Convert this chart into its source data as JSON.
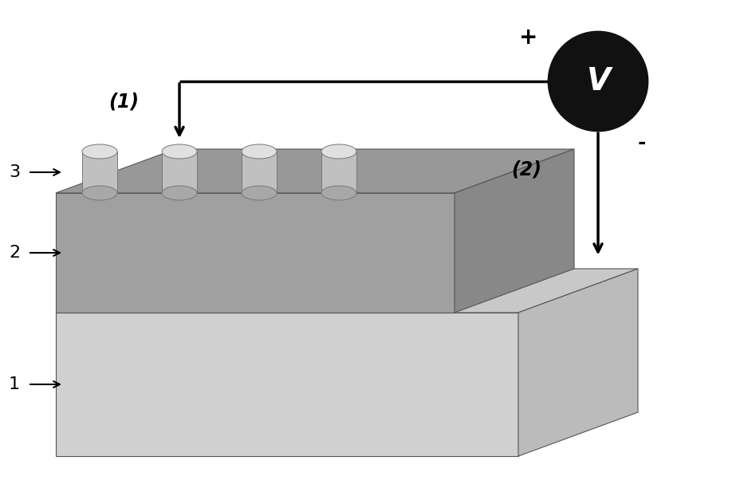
{
  "bg_color": "#ffffff",
  "layer1_front_color": "#d0d0d0",
  "layer1_top_color": "#c8c8c8",
  "layer1_side_color": "#bbbbbb",
  "layer2_front_color": "#a0a0a0",
  "layer2_top_color": "#989898",
  "layer2_side_color": "#888888",
  "cyl_body_color": "#c0c0c0",
  "cyl_top_color": "#e0e0e0",
  "cyl_side_color": "#a8a8a8",
  "voltmeter_color": "#111111",
  "voltmeter_text_color": "#ffffff",
  "wire_color": "#000000",
  "label_color": "#000000",
  "label1_text": "(1)",
  "label2_text": "(2)",
  "plus_text": "+",
  "minus_text": "-",
  "layer1_label": "1",
  "layer2_label": "2",
  "cylinders_label": "3",
  "edge_color": "#555555"
}
